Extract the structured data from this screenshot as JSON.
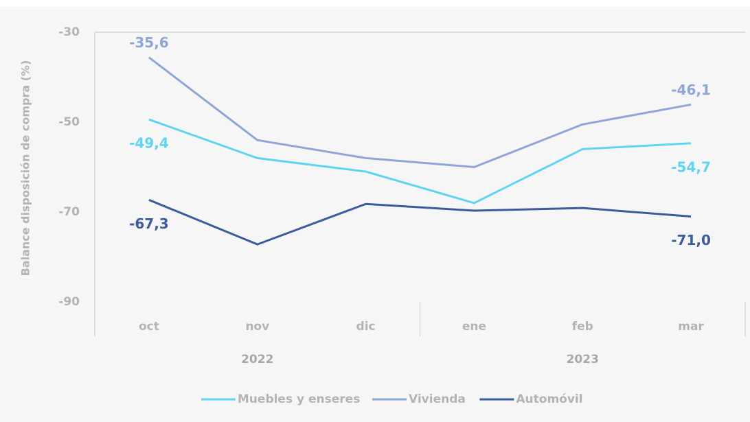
{
  "chart_data": {
    "type": "line",
    "y_label": "Balance disposición de compra (%)",
    "categories": [
      "oct",
      "nov",
      "dic",
      "ene",
      "feb",
      "mar"
    ],
    "years": [
      "2022",
      "2023"
    ],
    "series": [
      {
        "name": "Muebles y enseres",
        "color": "#5dd5f2",
        "values": [
          -49.4,
          -58,
          -61,
          -68,
          -56,
          -54.7
        ],
        "value_labels": [
          "-49,4",
          null,
          null,
          null,
          null,
          "-54,7"
        ]
      },
      {
        "name": "Vivienda",
        "color": "#8ea5d8",
        "values": [
          -35.6,
          -54,
          -58,
          -60,
          -50.5,
          -46.1
        ],
        "value_labels": [
          "-35,6",
          null,
          null,
          null,
          null,
          "-46,1"
        ]
      },
      {
        "name": "Automóvil",
        "color": "#3b5b9d",
        "values": [
          -67.3,
          -77.2,
          -68.2,
          -69.7,
          -69.1,
          -71.0
        ],
        "value_labels": [
          "-67,3",
          null,
          null,
          null,
          null,
          "-71,0"
        ]
      }
    ],
    "ylim": [
      -90,
      -30
    ],
    "yticks": [
      -30,
      -50,
      -70,
      -90
    ],
    "legend": "bottom"
  }
}
